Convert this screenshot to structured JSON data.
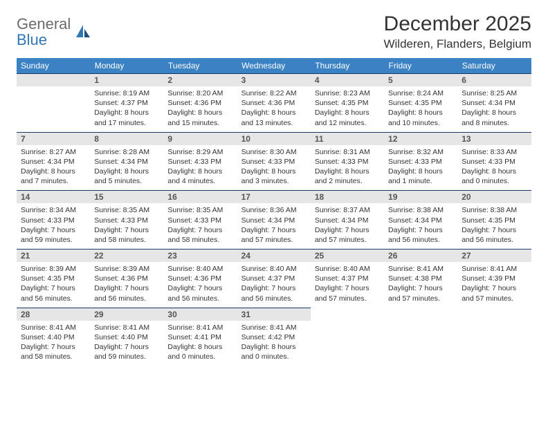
{
  "logo": {
    "general": "General",
    "blue": "Blue"
  },
  "title": "December 2025",
  "location": "Wilderen, Flanders, Belgium",
  "colors": {
    "header_bg": "#3b82c4",
    "header_text": "#ffffff",
    "daybar_bg": "#e6e6e6",
    "daybar_border": "#163a5f",
    "logo_gray": "#6b6b6b",
    "logo_blue": "#2f76b5",
    "text": "#333333",
    "background": "#ffffff"
  },
  "weekdays": [
    "Sunday",
    "Monday",
    "Tuesday",
    "Wednesday",
    "Thursday",
    "Friday",
    "Saturday"
  ],
  "first_weekday_index": 1,
  "days": [
    {
      "n": 1,
      "sunrise": "8:19 AM",
      "sunset": "4:37 PM",
      "daylight": "8 hours and 17 minutes."
    },
    {
      "n": 2,
      "sunrise": "8:20 AM",
      "sunset": "4:36 PM",
      "daylight": "8 hours and 15 minutes."
    },
    {
      "n": 3,
      "sunrise": "8:22 AM",
      "sunset": "4:36 PM",
      "daylight": "8 hours and 13 minutes."
    },
    {
      "n": 4,
      "sunrise": "8:23 AM",
      "sunset": "4:35 PM",
      "daylight": "8 hours and 12 minutes."
    },
    {
      "n": 5,
      "sunrise": "8:24 AM",
      "sunset": "4:35 PM",
      "daylight": "8 hours and 10 minutes."
    },
    {
      "n": 6,
      "sunrise": "8:25 AM",
      "sunset": "4:34 PM",
      "daylight": "8 hours and 8 minutes."
    },
    {
      "n": 7,
      "sunrise": "8:27 AM",
      "sunset": "4:34 PM",
      "daylight": "8 hours and 7 minutes."
    },
    {
      "n": 8,
      "sunrise": "8:28 AM",
      "sunset": "4:34 PM",
      "daylight": "8 hours and 5 minutes."
    },
    {
      "n": 9,
      "sunrise": "8:29 AM",
      "sunset": "4:33 PM",
      "daylight": "8 hours and 4 minutes."
    },
    {
      "n": 10,
      "sunrise": "8:30 AM",
      "sunset": "4:33 PM",
      "daylight": "8 hours and 3 minutes."
    },
    {
      "n": 11,
      "sunrise": "8:31 AM",
      "sunset": "4:33 PM",
      "daylight": "8 hours and 2 minutes."
    },
    {
      "n": 12,
      "sunrise": "8:32 AM",
      "sunset": "4:33 PM",
      "daylight": "8 hours and 1 minute."
    },
    {
      "n": 13,
      "sunrise": "8:33 AM",
      "sunset": "4:33 PM",
      "daylight": "8 hours and 0 minutes."
    },
    {
      "n": 14,
      "sunrise": "8:34 AM",
      "sunset": "4:33 PM",
      "daylight": "7 hours and 59 minutes."
    },
    {
      "n": 15,
      "sunrise": "8:35 AM",
      "sunset": "4:33 PM",
      "daylight": "7 hours and 58 minutes."
    },
    {
      "n": 16,
      "sunrise": "8:35 AM",
      "sunset": "4:33 PM",
      "daylight": "7 hours and 58 minutes."
    },
    {
      "n": 17,
      "sunrise": "8:36 AM",
      "sunset": "4:34 PM",
      "daylight": "7 hours and 57 minutes."
    },
    {
      "n": 18,
      "sunrise": "8:37 AM",
      "sunset": "4:34 PM",
      "daylight": "7 hours and 57 minutes."
    },
    {
      "n": 19,
      "sunrise": "8:38 AM",
      "sunset": "4:34 PM",
      "daylight": "7 hours and 56 minutes."
    },
    {
      "n": 20,
      "sunrise": "8:38 AM",
      "sunset": "4:35 PM",
      "daylight": "7 hours and 56 minutes."
    },
    {
      "n": 21,
      "sunrise": "8:39 AM",
      "sunset": "4:35 PM",
      "daylight": "7 hours and 56 minutes."
    },
    {
      "n": 22,
      "sunrise": "8:39 AM",
      "sunset": "4:36 PM",
      "daylight": "7 hours and 56 minutes."
    },
    {
      "n": 23,
      "sunrise": "8:40 AM",
      "sunset": "4:36 PM",
      "daylight": "7 hours and 56 minutes."
    },
    {
      "n": 24,
      "sunrise": "8:40 AM",
      "sunset": "4:37 PM",
      "daylight": "7 hours and 56 minutes."
    },
    {
      "n": 25,
      "sunrise": "8:40 AM",
      "sunset": "4:37 PM",
      "daylight": "7 hours and 57 minutes."
    },
    {
      "n": 26,
      "sunrise": "8:41 AM",
      "sunset": "4:38 PM",
      "daylight": "7 hours and 57 minutes."
    },
    {
      "n": 27,
      "sunrise": "8:41 AM",
      "sunset": "4:39 PM",
      "daylight": "7 hours and 57 minutes."
    },
    {
      "n": 28,
      "sunrise": "8:41 AM",
      "sunset": "4:40 PM",
      "daylight": "7 hours and 58 minutes."
    },
    {
      "n": 29,
      "sunrise": "8:41 AM",
      "sunset": "4:40 PM",
      "daylight": "7 hours and 59 minutes."
    },
    {
      "n": 30,
      "sunrise": "8:41 AM",
      "sunset": "4:41 PM",
      "daylight": "8 hours and 0 minutes."
    },
    {
      "n": 31,
      "sunrise": "8:41 AM",
      "sunset": "4:42 PM",
      "daylight": "8 hours and 0 minutes."
    }
  ],
  "labels": {
    "sunrise": "Sunrise:",
    "sunset": "Sunset:",
    "daylight": "Daylight:"
  }
}
